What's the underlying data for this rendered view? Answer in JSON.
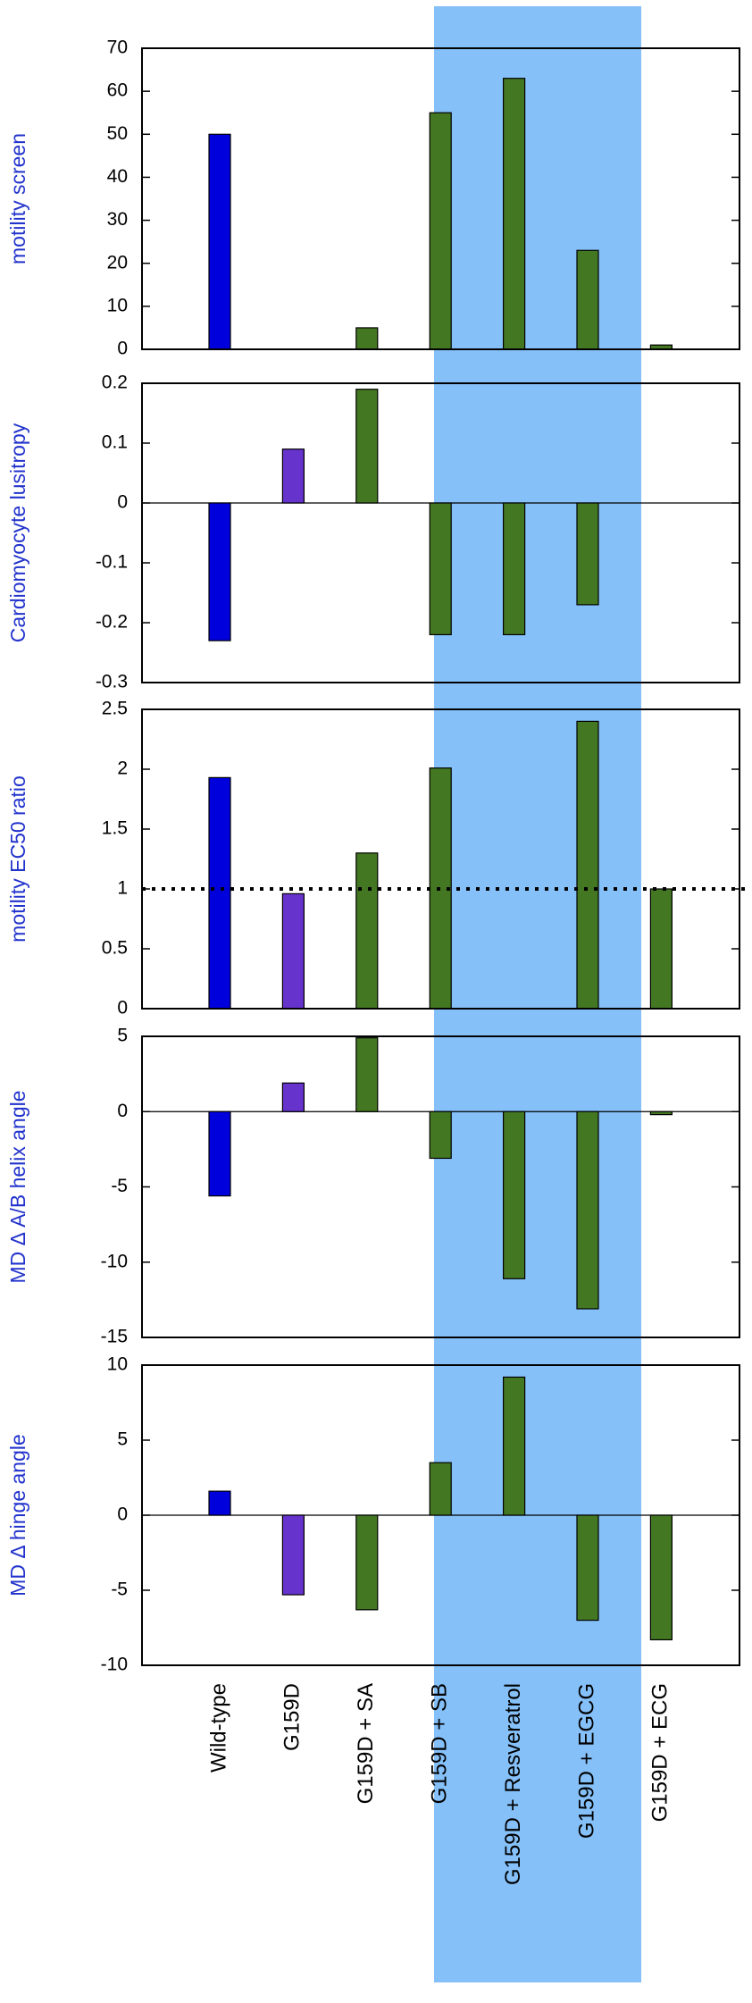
{
  "chart_data": [
    {
      "type": "bar",
      "ylabel": "motility screen",
      "categories": [
        "Wild-type",
        "G159D",
        "G159D + SA",
        "G159D + SB",
        "G159D + Resveratrol",
        "G159D + EGCG",
        "G159D + ECG"
      ],
      "values": [
        50,
        0,
        5,
        55,
        63,
        23,
        1
      ],
      "colors": [
        "#0000dd",
        "#6633cc",
        "#447722",
        "#447722",
        "#447722",
        "#447722",
        "#447722"
      ],
      "ylim": [
        0,
        70
      ],
      "yticks": [
        0,
        10,
        20,
        30,
        40,
        50,
        60,
        70
      ]
    },
    {
      "type": "bar",
      "ylabel": "Cardiomyocyte lusitropy",
      "categories": [
        "Wild-type",
        "G159D",
        "G159D + SA",
        "G159D + SB",
        "G159D + Resveratrol",
        "G159D + EGCG",
        "G159D + ECG"
      ],
      "values": [
        -0.23,
        0.09,
        0.19,
        -0.22,
        -0.22,
        -0.17,
        0
      ],
      "colors": [
        "#0000dd",
        "#6633cc",
        "#447722",
        "#447722",
        "#447722",
        "#447722",
        "#447722"
      ],
      "ylim": [
        -0.3,
        0.2
      ],
      "yticks": [
        -0.3,
        -0.2,
        -0.1,
        0,
        0.1,
        0.2
      ]
    },
    {
      "type": "bar",
      "ylabel": "motility EC50  ratio",
      "categories": [
        "Wild-type",
        "G159D",
        "G159D + SA",
        "G159D + SB",
        "G159D + Resveratrol",
        "G159D + EGCG",
        "G159D + ECG"
      ],
      "values": [
        1.93,
        0.96,
        1.3,
        2.01,
        0,
        2.4,
        1.0
      ],
      "colors": [
        "#0000dd",
        "#6633cc",
        "#447722",
        "#447722",
        "#447722",
        "#447722",
        "#447722"
      ],
      "ylim": [
        0,
        2.5
      ],
      "yticks": [
        0,
        0.5,
        1,
        1.5,
        2,
        2.5
      ],
      "reference_line": 1
    },
    {
      "type": "bar",
      "ylabel": "MD Δ A/B helix  angle",
      "categories": [
        "Wild-type",
        "G159D",
        "G159D + SA",
        "G159D + SB",
        "G159D + Resveratrol",
        "G159D + EGCG",
        "G159D + ECG"
      ],
      "values": [
        -5.6,
        1.9,
        4.9,
        -3.1,
        -11.1,
        -13.1,
        -0.2
      ],
      "colors": [
        "#0000dd",
        "#6633cc",
        "#447722",
        "#447722",
        "#447722",
        "#447722",
        "#447722"
      ],
      "ylim": [
        -15,
        5
      ],
      "yticks": [
        -15,
        -10,
        -5,
        0,
        5
      ]
    },
    {
      "type": "bar",
      "ylabel": "MD Δ hinge angle",
      "categories": [
        "Wild-type",
        "G159D",
        "G159D + SA",
        "G159D + SB",
        "G159D + Resveratrol",
        "G159D + EGCG",
        "G159D + ECG"
      ],
      "values": [
        1.6,
        -5.3,
        -6.3,
        3.5,
        9.2,
        -7.0,
        -8.3
      ],
      "colors": [
        "#0000dd",
        "#6633cc",
        "#447722",
        "#447722",
        "#447722",
        "#447722",
        "#447722"
      ],
      "ylim": [
        -10,
        10
      ],
      "yticks": [
        -10,
        -5,
        0,
        5,
        10
      ]
    }
  ]
}
